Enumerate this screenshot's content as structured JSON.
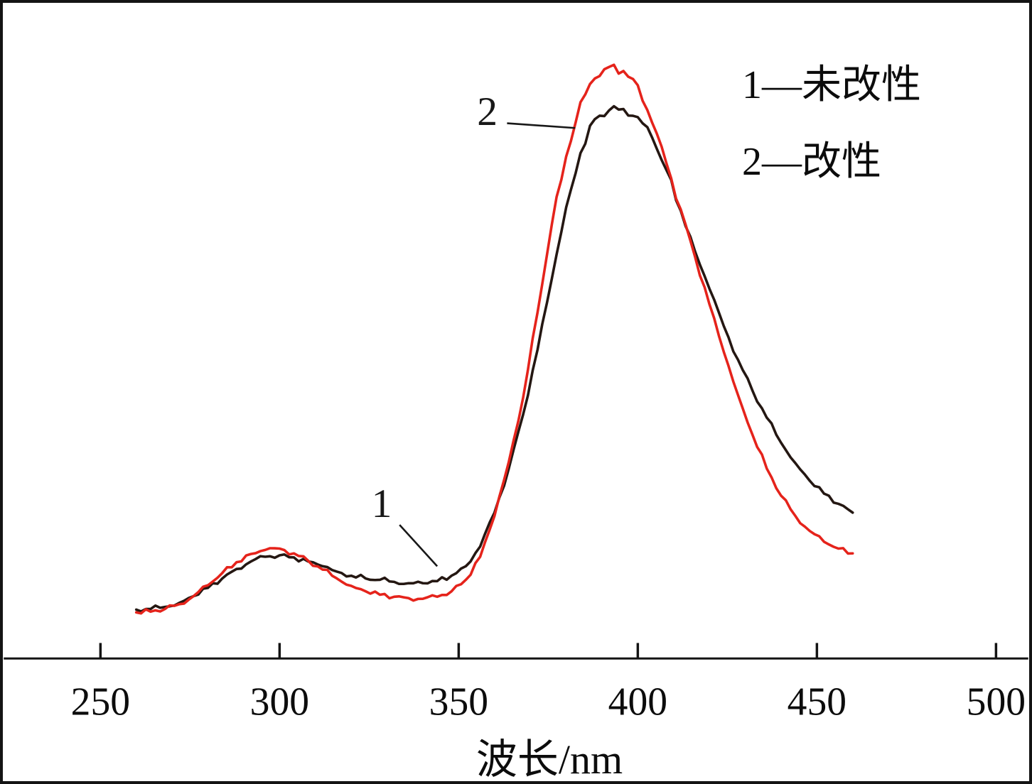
{
  "figure": {
    "xlabel": "波长/nm",
    "legend": [
      {
        "key": "1",
        "label": "1—未改性"
      },
      {
        "key": "2",
        "label": "2—改性"
      }
    ]
  },
  "chart_data": {
    "type": "line",
    "title": "",
    "xlabel": "波长/nm",
    "ylabel": "",
    "x_ticks": [
      250,
      300,
      350,
      400,
      450,
      500
    ],
    "xlim": [
      223,
      509
    ],
    "ylim": [
      0,
      900
    ],
    "y_axis_visible": false,
    "grid": false,
    "legend_position": "top-right",
    "x": [
      260,
      264,
      268,
      272,
      276,
      280,
      284,
      288,
      292,
      296,
      300,
      304,
      308,
      312,
      316,
      320,
      324,
      328,
      332,
      336,
      340,
      344,
      348,
      352,
      356,
      360,
      364,
      368,
      372,
      376,
      380,
      384,
      388,
      392,
      396,
      400,
      404,
      408,
      412,
      416,
      420,
      424,
      428,
      432,
      436,
      440,
      444,
      448,
      452,
      456,
      460
    ],
    "series": [
      {
        "name": "1—未改性",
        "short": "1",
        "color": "#241712",
        "values": [
          72,
          73,
          76,
          82,
          92,
          104,
          118,
          132,
          143,
          150,
          152,
          149,
          143,
          136,
          128,
          122,
          118,
          116,
          113,
          111,
          111,
          114,
          122,
          136,
          165,
          215,
          280,
          360,
          455,
          560,
          665,
          745,
          795,
          808,
          810,
          798,
          768,
          720,
          660,
          600,
          545,
          490,
          440,
          395,
          355,
          318,
          288,
          262,
          243,
          228,
          215
        ]
      },
      {
        "name": "2—改性",
        "short": "2",
        "color": "#e5231b",
        "values": [
          68,
          69,
          73,
          80,
          92,
          108,
          126,
          142,
          154,
          160,
          162,
          155,
          144,
          131,
          118,
          107,
          99,
          94,
          91,
          89,
          88,
          91,
          99,
          116,
          150,
          210,
          290,
          385,
          510,
          640,
          740,
          820,
          855,
          872,
          866,
          845,
          790,
          730,
          662,
          592,
          522,
          452,
          388,
          330,
          280,
          240,
          210,
          188,
          172,
          162,
          155
        ]
      }
    ],
    "annotations": [
      {
        "text": "1",
        "text_x": 328.5,
        "text_y": 228,
        "line_from": [
          333.5,
          197
        ],
        "line_to": [
          344,
          136
        ],
        "series": "1"
      },
      {
        "text": "2",
        "text_x": 358,
        "text_y": 806,
        "line_from": [
          363.5,
          789
        ],
        "line_to": [
          382.5,
          782
        ],
        "series": "2"
      }
    ]
  }
}
